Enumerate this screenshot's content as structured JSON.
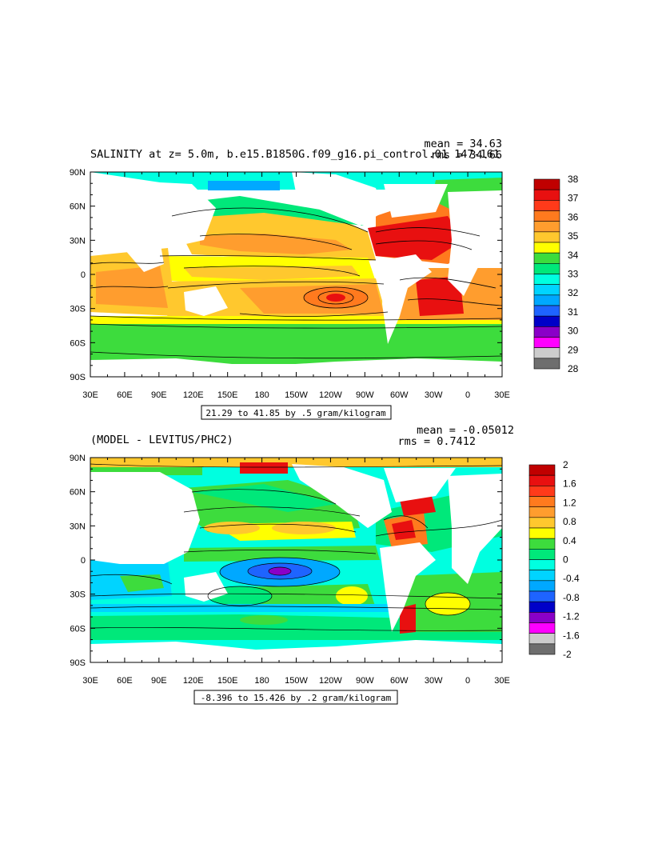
{
  "chart_data": [
    {
      "type": "heatmap",
      "title": "SALINITY at z=   5.0m, b.e15.B1850G.f09_g16.pi_control.01 147-161",
      "stat_mean": "mean = 34.63",
      "stat_rms": "rms = 34.66",
      "range_label": "21.29 to 41.85 by .5 gram/kilogram",
      "lat_ticks": [
        "90N",
        "60N",
        "30N",
        "0",
        "30S",
        "60S",
        "90S"
      ],
      "lon_ticks": [
        "30E",
        "60E",
        "90E",
        "120E",
        "150E",
        "180",
        "150W",
        "120W",
        "90W",
        "60W",
        "30W",
        "0",
        "30E"
      ],
      "colorbar": {
        "labels": [
          "38",
          "37",
          "36",
          "35",
          "34",
          "33",
          "32",
          "31",
          "30",
          "29",
          "28"
        ],
        "colors": [
          "#c00000",
          "#e81010",
          "#ff3a1a",
          "#ff7a1e",
          "#ff9d2e",
          "#ffc82e",
          "#ffff00",
          "#3ddc3d",
          "#00e87a",
          "#00ffe0",
          "#00d4ff",
          "#00a8ff",
          "#1e64ff",
          "#0000c8",
          "#8a00c8",
          "#ff00ff",
          "#cccccc",
          "#6e6e6e"
        ]
      }
    },
    {
      "type": "heatmap",
      "title": "(MODEL - LEVITUS/PHC2)",
      "stat_mean": "mean = -0.05012",
      "stat_rms": "rms = 0.7412",
      "range_label": "-8.396 to 15.426 by .2 gram/kilogram",
      "lat_ticks": [
        "90N",
        "60N",
        "30N",
        "0",
        "30S",
        "60S",
        "90S"
      ],
      "lon_ticks": [
        "30E",
        "60E",
        "90E",
        "120E",
        "150E",
        "180",
        "150W",
        "120W",
        "90W",
        "60W",
        "30W",
        "0",
        "30E"
      ],
      "colorbar": {
        "labels": [
          "2",
          "1.6",
          "1.2",
          "0.8",
          "0.4",
          "0",
          "-0.4",
          "-0.8",
          "-1.2",
          "-1.6",
          "-2"
        ],
        "colors": [
          "#c00000",
          "#e81010",
          "#ff3a1a",
          "#ff7a1e",
          "#ff9d2e",
          "#ffc82e",
          "#ffff00",
          "#3ddc3d",
          "#00e87a",
          "#00ffe0",
          "#00d4ff",
          "#00a8ff",
          "#1e64ff",
          "#0000c8",
          "#8a00c8",
          "#ff00ff",
          "#cccccc",
          "#6e6e6e"
        ]
      }
    }
  ]
}
